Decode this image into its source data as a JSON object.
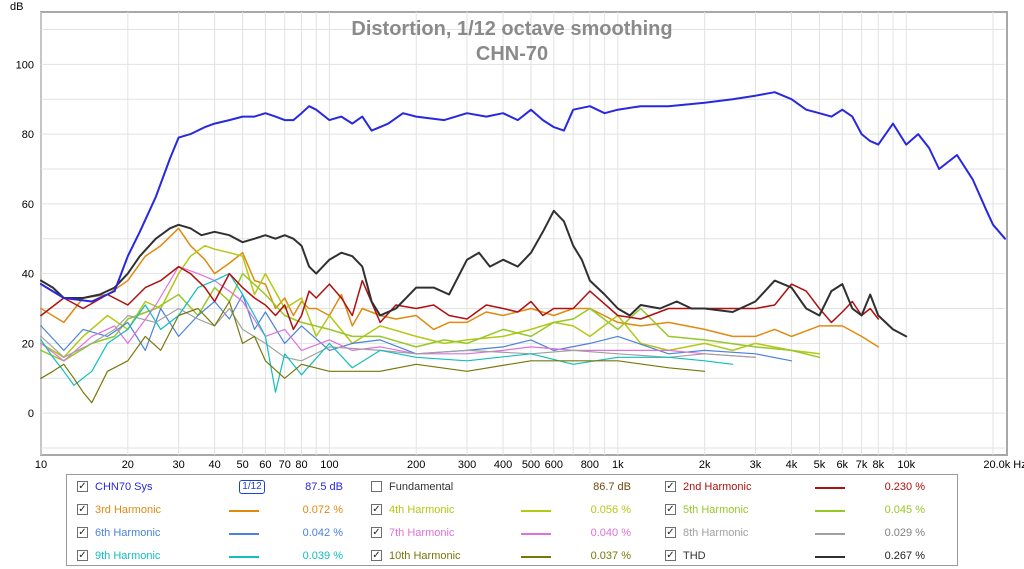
{
  "chart_data": {
    "type": "line",
    "title": "Distortion, 1/12 octave smoothing",
    "subtitle": "CHN-70",
    "ylabel": "dB",
    "xunit": "Hz",
    "x_scale": "log",
    "xlim": [
      10,
      22000
    ],
    "ylim": [
      -12,
      115
    ],
    "grid": true,
    "x_ticks": [
      {
        "v": 10,
        "label": "10"
      },
      {
        "v": 20,
        "label": "20"
      },
      {
        "v": 30,
        "label": "30"
      },
      {
        "v": 40,
        "label": "40"
      },
      {
        "v": 50,
        "label": "50"
      },
      {
        "v": 60,
        "label": "60"
      },
      {
        "v": 70,
        "label": "70"
      },
      {
        "v": 80,
        "label": "80"
      },
      {
        "v": 100,
        "label": "100"
      },
      {
        "v": 200,
        "label": "200"
      },
      {
        "v": 300,
        "label": "300"
      },
      {
        "v": 400,
        "label": "400"
      },
      {
        "v": 500,
        "label": "500"
      },
      {
        "v": 600,
        "label": "600"
      },
      {
        "v": 800,
        "label": "800"
      },
      {
        "v": 1000,
        "label": "1k"
      },
      {
        "v": 2000,
        "label": "2k"
      },
      {
        "v": 3000,
        "label": "3k"
      },
      {
        "v": 4000,
        "label": "4k"
      },
      {
        "v": 5000,
        "label": "5k"
      },
      {
        "v": 6000,
        "label": "6k"
      },
      {
        "v": 7000,
        "label": "7k"
      },
      {
        "v": 8000,
        "label": "8k"
      },
      {
        "v": 10000,
        "label": "10k"
      },
      {
        "v": 20000,
        "label": "20.0k Hz"
      }
    ],
    "y_ticks": [
      {
        "v": 0,
        "label": "0"
      },
      {
        "v": 20,
        "label": "20"
      },
      {
        "v": 40,
        "label": "40"
      },
      {
        "v": 60,
        "label": "60"
      },
      {
        "v": 80,
        "label": "80"
      },
      {
        "v": 100,
        "label": "100"
      }
    ],
    "series": [
      {
        "name": "CHN70 Sys",
        "color": "#2828e0",
        "width": 2,
        "x": [
          10,
          12,
          15,
          18,
          20,
          22,
          25,
          28,
          30,
          33,
          37,
          40,
          45,
          50,
          55,
          60,
          65,
          70,
          75,
          80,
          85,
          90,
          100,
          110,
          120,
          130,
          140,
          160,
          180,
          200,
          250,
          300,
          350,
          400,
          450,
          500,
          550,
          600,
          650,
          700,
          800,
          900,
          1000,
          1200,
          1500,
          2000,
          2500,
          3000,
          3500,
          4000,
          4500,
          5000,
          5500,
          6000,
          6500,
          7000,
          7500,
          8000,
          9000,
          10000,
          11000,
          12000,
          13000,
          15000,
          17000,
          19000,
          20000,
          22000
        ],
        "values": [
          37,
          33,
          32,
          35,
          45,
          52,
          62,
          73,
          79,
          80,
          82,
          83,
          84,
          85,
          85,
          86,
          85,
          84,
          84,
          86,
          88,
          87,
          84,
          85,
          83,
          85,
          81,
          83,
          86,
          85,
          84,
          86,
          85,
          86,
          84,
          87,
          84,
          82,
          81,
          87,
          88,
          86,
          87,
          88,
          88,
          89,
          90,
          91,
          92,
          90,
          87,
          86,
          85,
          87,
          85,
          80,
          78,
          77,
          83,
          77,
          80,
          76,
          70,
          74,
          67,
          58,
          54,
          50
        ]
      },
      {
        "name": "2nd Harmonic",
        "color": "#b01010",
        "width": 1.5,
        "x": [
          10,
          12,
          14,
          17,
          20,
          23,
          26,
          30,
          33,
          37,
          40,
          45,
          50,
          55,
          60,
          65,
          70,
          75,
          80,
          85,
          90,
          100,
          110,
          120,
          130,
          150,
          170,
          200,
          230,
          260,
          300,
          350,
          400,
          450,
          500,
          550,
          600,
          700,
          800,
          1000,
          1200,
          1500,
          2000,
          2500,
          3000,
          3500,
          4000,
          4500,
          5000,
          5500,
          6000,
          6500,
          7000,
          7500,
          8000
        ],
        "values": [
          28,
          33,
          30,
          34,
          31,
          36,
          38,
          42,
          40,
          36,
          32,
          40,
          36,
          33,
          31,
          28,
          31,
          24,
          28,
          35,
          33,
          37,
          33,
          28,
          38,
          26,
          31,
          30,
          31,
          28,
          27,
          31,
          30,
          29,
          32,
          28,
          30,
          30,
          35,
          28,
          27,
          30,
          30,
          30,
          30,
          31,
          37,
          35,
          30,
          26,
          29,
          32,
          28,
          30,
          27
        ]
      },
      {
        "name": "3rd Harmonic",
        "color": "#e08a10",
        "width": 1.5,
        "x": [
          10,
          12,
          14,
          17,
          20,
          23,
          26,
          30,
          33,
          37,
          40,
          45,
          50,
          55,
          60,
          65,
          70,
          75,
          80,
          85,
          90,
          100,
          110,
          120,
          130,
          150,
          170,
          200,
          230,
          260,
          300,
          350,
          400,
          500,
          600,
          700,
          800,
          1000,
          1200,
          1500,
          2000,
          2500,
          3000,
          3500,
          4000,
          5000,
          6000,
          7000,
          8000
        ],
        "values": [
          30,
          26,
          33,
          34,
          38,
          45,
          48,
          53,
          48,
          44,
          40,
          43,
          46,
          38,
          37,
          30,
          33,
          28,
          32,
          30,
          30,
          28,
          34,
          25,
          30,
          28,
          27,
          28,
          24,
          26,
          26,
          29,
          28,
          30,
          28,
          30,
          30,
          26,
          25,
          26,
          24,
          22,
          22,
          24,
          22,
          25,
          25,
          22,
          19
        ]
      },
      {
        "name": "4th Harmonic",
        "color": "#b4c814",
        "width": 1.5,
        "x": [
          10,
          12,
          14,
          17,
          20,
          23,
          26,
          30,
          33,
          37,
          40,
          45,
          50,
          55,
          60,
          70,
          80,
          90,
          100,
          120,
          150,
          200,
          250,
          300,
          400,
          500,
          600,
          700,
          800,
          1000,
          1200,
          1500,
          2000,
          2500,
          3000,
          4000,
          5000
        ],
        "values": [
          20,
          16,
          22,
          28,
          24,
          32,
          30,
          40,
          45,
          48,
          47,
          46,
          45,
          34,
          40,
          30,
          33,
          22,
          28,
          20,
          25,
          22,
          20,
          21,
          22,
          24,
          26,
          25,
          22,
          28,
          20,
          18,
          20,
          18,
          20,
          18,
          17
        ]
      },
      {
        "name": "5th Harmonic",
        "color": "#96c828",
        "width": 1.5,
        "x": [
          10,
          12,
          15,
          18,
          20,
          25,
          30,
          35,
          40,
          45,
          50,
          60,
          70,
          80,
          100,
          120,
          150,
          200,
          250,
          300,
          400,
          500,
          600,
          700,
          800,
          1000,
          1200,
          1500,
          2000,
          3000,
          4000,
          5000
        ],
        "values": [
          18,
          15,
          20,
          22,
          27,
          30,
          34,
          28,
          36,
          32,
          40,
          34,
          28,
          26,
          24,
          22,
          22,
          19,
          21,
          20,
          24,
          22,
          26,
          27,
          30,
          24,
          30,
          22,
          21,
          19,
          18,
          16
        ]
      },
      {
        "name": "6th Harmonic",
        "color": "#4a82dc",
        "width": 1.2,
        "x": [
          10,
          12,
          14,
          17,
          20,
          23,
          26,
          30,
          35,
          40,
          45,
          50,
          55,
          60,
          70,
          80,
          100,
          120,
          150,
          200,
          300,
          400,
          500,
          600,
          800,
          1000,
          1500,
          2000,
          3000,
          4000
        ],
        "values": [
          25,
          18,
          24,
          22,
          26,
          18,
          30,
          22,
          28,
          32,
          27,
          34,
          24,
          29,
          20,
          25,
          18,
          20,
          21,
          17,
          18,
          19,
          21,
          18,
          20,
          22,
          17,
          18,
          17,
          15
        ]
      },
      {
        "name": "7th Harmonic",
        "color": "#e070dc",
        "width": 1.2,
        "x": [
          10,
          12,
          15,
          18,
          20,
          25,
          30,
          35,
          40,
          45,
          50,
          60,
          70,
          80,
          100,
          120,
          150,
          200,
          300,
          400,
          500,
          700,
          1000,
          1500,
          2000,
          3000
        ],
        "values": [
          20,
          15,
          22,
          25,
          20,
          31,
          42,
          40,
          38,
          35,
          32,
          22,
          24,
          18,
          21,
          18,
          19,
          17,
          17,
          18,
          19,
          18,
          18,
          18,
          17,
          16
        ]
      },
      {
        "name": "8th Harmonic",
        "color": "#a0a0a0",
        "width": 1.2,
        "x": [
          10,
          12,
          15,
          18,
          20,
          25,
          30,
          35,
          40,
          45,
          50,
          60,
          70,
          80,
          100,
          150,
          200,
          300,
          500,
          700,
          1000,
          1500,
          2000,
          3000
        ],
        "values": [
          22,
          16,
          20,
          24,
          28,
          26,
          30,
          27,
          25,
          30,
          24,
          20,
          16,
          15,
          19,
          18,
          17,
          18,
          17,
          18,
          17,
          16,
          17,
          16
        ]
      },
      {
        "name": "9th Harmonic",
        "color": "#12bebe",
        "width": 1.2,
        "x": [
          10,
          11,
          12,
          13,
          15,
          17,
          20,
          23,
          26,
          30,
          35,
          40,
          45,
          50,
          55,
          60,
          65,
          70,
          80,
          100,
          120,
          150,
          200,
          300,
          500,
          700,
          1000,
          1500,
          2000,
          2500
        ],
        "values": [
          21,
          16,
          12,
          8,
          12,
          20,
          24,
          31,
          24,
          28,
          36,
          38,
          40,
          34,
          28,
          22,
          6,
          17,
          11,
          20,
          13,
          18,
          16,
          15,
          17,
          14,
          16,
          16,
          15,
          14
        ]
      },
      {
        "name": "10th Harmonic",
        "color": "#78780a",
        "width": 1.2,
        "x": [
          10,
          11,
          12,
          13,
          14,
          15,
          17,
          20,
          23,
          26,
          30,
          35,
          40,
          45,
          50,
          55,
          60,
          70,
          80,
          100,
          150,
          200,
          300,
          500,
          700,
          1000,
          1500,
          2000
        ],
        "values": [
          10,
          12,
          14,
          10,
          6,
          3,
          12,
          15,
          22,
          18,
          28,
          30,
          25,
          32,
          20,
          22,
          15,
          10,
          14,
          12,
          12,
          14,
          12,
          15,
          15,
          15,
          13,
          12
        ]
      },
      {
        "name": "THD",
        "color": "#303030",
        "width": 2,
        "x": [
          10,
          11,
          12,
          14,
          16,
          18,
          20,
          22,
          25,
          28,
          30,
          33,
          36,
          40,
          45,
          50,
          55,
          60,
          65,
          70,
          75,
          80,
          85,
          90,
          100,
          110,
          120,
          130,
          140,
          150,
          170,
          200,
          230,
          260,
          300,
          330,
          360,
          400,
          450,
          500,
          550,
          600,
          650,
          700,
          750,
          800,
          900,
          1000,
          1100,
          1200,
          1400,
          1600,
          1800,
          2000,
          2500,
          3000,
          3500,
          4000,
          4500,
          5000,
          5500,
          6000,
          6500,
          7000,
          7500,
          8000,
          9000,
          10000
        ],
        "values": [
          38,
          36,
          33,
          33,
          34,
          36,
          40,
          45,
          50,
          53,
          54,
          53,
          51,
          52,
          51,
          49,
          50,
          51,
          50,
          51,
          50,
          48,
          42,
          40,
          44,
          46,
          45,
          42,
          32,
          28,
          30,
          36,
          36,
          34,
          44,
          46,
          42,
          44,
          42,
          46,
          52,
          58,
          55,
          48,
          44,
          38,
          34,
          30,
          28,
          31,
          30,
          32,
          30,
          30,
          29,
          32,
          38,
          36,
          30,
          28,
          35,
          37,
          30,
          28,
          34,
          28,
          24,
          22
        ]
      }
    ]
  },
  "legend": {
    "rows": [
      [
        {
          "name": "CHN70 Sys",
          "checked": true,
          "value": "87.5 dB",
          "color": "#2828e0",
          "smoothing": "1/12"
        },
        {
          "name": "Fundamental",
          "checked": false,
          "value": "86.7 dB",
          "color": "#6e4a10",
          "swatch": false
        },
        {
          "name": "2nd Harmonic",
          "checked": true,
          "value": "0.230 %",
          "color": "#b01010"
        }
      ],
      [
        {
          "name": "3rd Harmonic",
          "checked": true,
          "value": "0.072 %",
          "color": "#e08a10"
        },
        {
          "name": "4th Harmonic",
          "checked": true,
          "value": "0.056 %",
          "color": "#b4c814"
        },
        {
          "name": "5th Harmonic",
          "checked": true,
          "value": "0.045 %",
          "color": "#96c828"
        }
      ],
      [
        {
          "name": "6th Harmonic",
          "checked": true,
          "value": "0.042 %",
          "color": "#4a82dc"
        },
        {
          "name": "7th Harmonic",
          "checked": true,
          "value": "0.040 %",
          "color": "#e070dc"
        },
        {
          "name": "8th Harmonic",
          "checked": true,
          "value": "0.029 %",
          "color": "#a0a0a0"
        }
      ],
      [
        {
          "name": "9th Harmonic",
          "checked": true,
          "value": "0.039 %",
          "color": "#12bebe"
        },
        {
          "name": "10th Harmonic",
          "checked": true,
          "value": "0.037 %",
          "color": "#78780a"
        },
        {
          "name": "THD",
          "checked": true,
          "value": "0.267 %",
          "color": "#303030"
        }
      ]
    ]
  }
}
